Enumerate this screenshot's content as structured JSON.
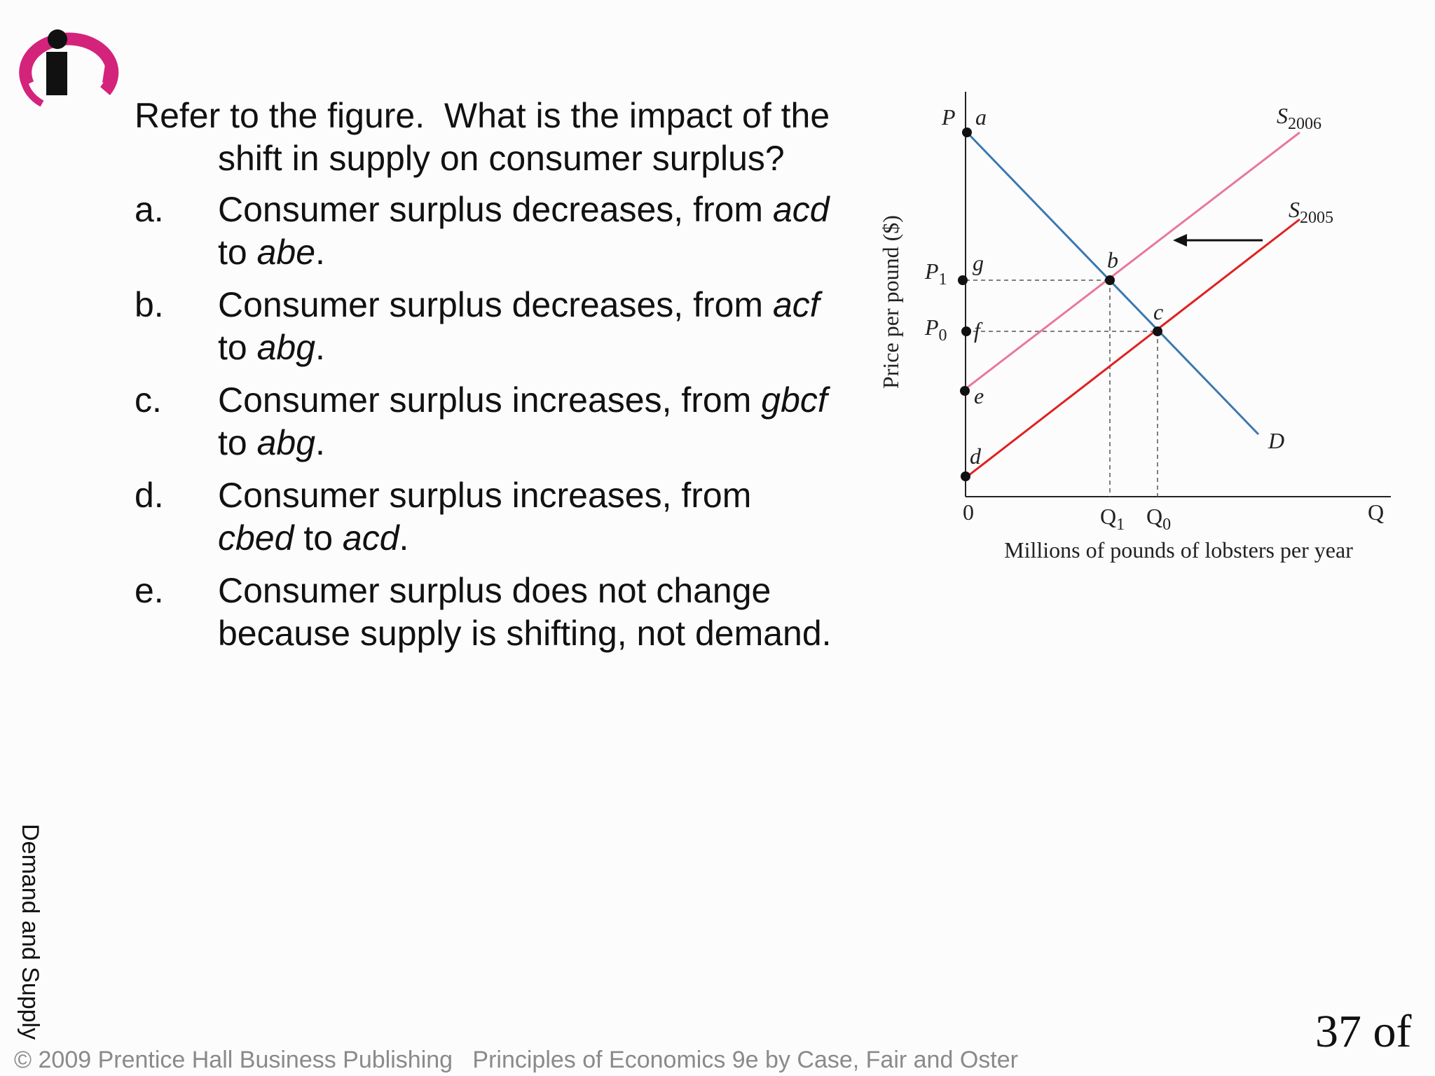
{
  "question": {
    "lines": [
      "Refer to the figure.  What is the impact of the",
      "shift in supply on consumer surplus?"
    ]
  },
  "options": [
    {
      "label": "a.",
      "lines": [
        [
          {
            "text": "Consumer surplus decreases, from "
          },
          {
            "text": "acd",
            "italic": true
          }
        ],
        [
          {
            "text": "to "
          },
          {
            "text": "abe",
            "italic": true
          },
          {
            "text": "."
          }
        ]
      ]
    },
    {
      "label": "b.",
      "lines": [
        [
          {
            "text": "Consumer surplus decreases, from "
          },
          {
            "text": "acf",
            "italic": true
          }
        ],
        [
          {
            "text": "to "
          },
          {
            "text": "abg",
            "italic": true
          },
          {
            "text": "."
          }
        ]
      ]
    },
    {
      "label": "c.",
      "lines": [
        [
          {
            "text": "Consumer surplus increases, from "
          },
          {
            "text": "gbcf",
            "italic": true
          }
        ],
        [
          {
            "text": "to "
          },
          {
            "text": "abg",
            "italic": true
          },
          {
            "text": "."
          }
        ]
      ]
    },
    {
      "label": "d.",
      "lines": [
        [
          {
            "text": "Consumer surplus increases, from"
          }
        ],
        [
          {
            "text": "cbed",
            "italic": true
          },
          {
            "text": " to "
          },
          {
            "text": "acd",
            "italic": true
          },
          {
            "text": "."
          }
        ]
      ]
    },
    {
      "label": "e.",
      "lines": [
        [
          {
            "text": "Consumer surplus does not change"
          }
        ],
        [
          {
            "text": "because supply is shifting, not demand."
          }
        ]
      ]
    }
  ],
  "figure": {
    "y_axis_label": "Price per pound ($)",
    "x_axis_label": "Millions of pounds of lobsters per year",
    "labels": [
      {
        "text": "P",
        "italic": true
      },
      {
        "text": "a",
        "italic": true
      },
      {
        "text": "S",
        "italic": true,
        "sub": "2006"
      },
      {
        "text": "S",
        "italic": true,
        "sub": "2005"
      },
      {
        "text": "P",
        "italic": true,
        "sub": "1"
      },
      {
        "text": "g",
        "italic": true
      },
      {
        "text": "b",
        "italic": true
      },
      {
        "text": "P",
        "italic": true,
        "sub": "0"
      },
      {
        "text": "f",
        "italic": true
      },
      {
        "text": "c",
        "italic": true
      },
      {
        "text": "e",
        "italic": true
      },
      {
        "text": "D",
        "italic": true
      },
      {
        "text": "d",
        "italic": true
      },
      {
        "text": "0"
      },
      {
        "text": "Q",
        "sub": "1"
      },
      {
        "text": "Q",
        "sub": "0"
      },
      {
        "text": "Q"
      }
    ]
  },
  "sidebar": "Demand and Supply",
  "footer": "© 2009 Prentice Hall Business Publishing   Principles of Economics 9e by Case, Fair and Oster",
  "page_number": "37 of"
}
